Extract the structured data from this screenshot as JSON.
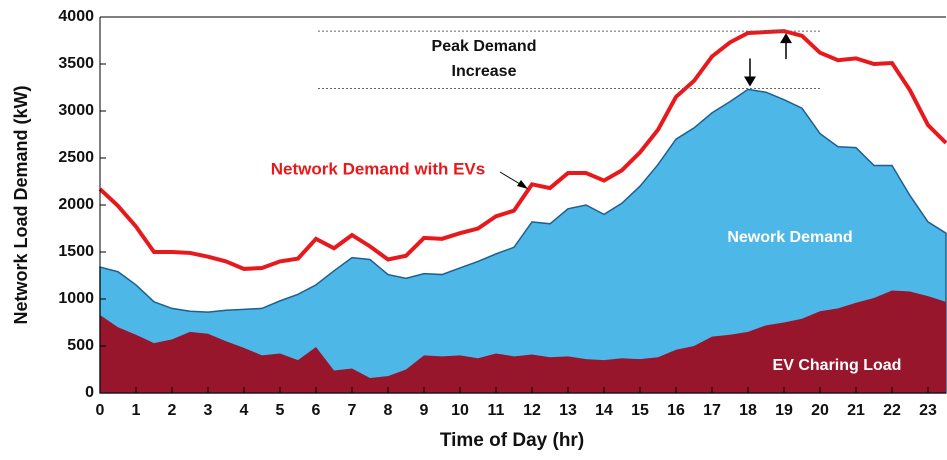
{
  "chart_data": {
    "type": "area",
    "xlabel": "Time of Day (hr)",
    "ylabel": "Network Load Demand (kW)",
    "annotations": [
      "Peak Demand",
      "Increase"
    ],
    "peak_lines": [
      3850,
      3240
    ],
    "x": [
      0,
      0.5,
      1,
      1.5,
      2,
      2.5,
      3,
      3.5,
      4,
      4.5,
      5,
      5.5,
      6,
      6.5,
      7,
      7.5,
      8,
      8.5,
      9,
      9.5,
      10,
      10.5,
      11,
      11.5,
      12,
      12.5,
      13,
      13.5,
      14,
      14.5,
      15,
      15.5,
      16,
      16.5,
      17,
      17.5,
      18,
      18.5,
      19,
      19.5,
      20,
      20.5,
      21,
      21.5,
      22,
      22.5,
      23,
      23.5
    ],
    "series": [
      {
        "name": "Nework Demand",
        "color": "#4db8e8",
        "kind": "area",
        "values": [
          1340,
          1290,
          1150,
          970,
          900,
          870,
          860,
          880,
          890,
          900,
          980,
          1050,
          1150,
          1300,
          1440,
          1420,
          1260,
          1220,
          1270,
          1260,
          1330,
          1400,
          1480,
          1550,
          1820,
          1800,
          1960,
          2000,
          1900,
          2020,
          2200,
          2430,
          2700,
          2820,
          2980,
          3100,
          3230,
          3200,
          3120,
          3030,
          2760,
          2620,
          2610,
          2420,
          2420,
          2100,
          1820,
          1700
        ]
      },
      {
        "name": "EV Charing Load",
        "color": "#98162b",
        "kind": "area",
        "values": [
          830,
          700,
          620,
          530,
          570,
          650,
          630,
          550,
          480,
          400,
          420,
          350,
          490,
          240,
          260,
          160,
          180,
          250,
          400,
          390,
          400,
          370,
          420,
          390,
          410,
          380,
          390,
          360,
          350,
          370,
          360,
          380,
          460,
          500,
          600,
          620,
          650,
          720,
          750,
          790,
          870,
          900,
          960,
          1010,
          1090,
          1080,
          1030,
          970
        ]
      },
      {
        "name": "Network Demand with EVs",
        "color": "#e8191d",
        "kind": "line",
        "values": [
          2170,
          1990,
          1770,
          1500,
          1500,
          1490,
          1450,
          1400,
          1320,
          1330,
          1400,
          1430,
          1640,
          1540,
          1680,
          1560,
          1420,
          1460,
          1650,
          1640,
          1700,
          1750,
          1880,
          1940,
          2220,
          2180,
          2340,
          2340,
          2260,
          2370,
          2560,
          2800,
          3150,
          3320,
          3580,
          3730,
          3830,
          3840,
          3850,
          3800,
          3620,
          3540,
          3560,
          3500,
          3510,
          3220,
          2850,
          2660
        ]
      }
    ],
    "xlim": [
      0,
      23.5
    ],
    "xticks": [
      0,
      1,
      2,
      3,
      4,
      5,
      6,
      7,
      8,
      9,
      10,
      11,
      12,
      13,
      14,
      15,
      16,
      17,
      18,
      19,
      20,
      21,
      22,
      23
    ],
    "ylim": [
      0,
      4000
    ],
    "yticks": [
      0,
      500,
      1000,
      1500,
      2000,
      2500,
      3000,
      3500,
      4000
    ]
  }
}
